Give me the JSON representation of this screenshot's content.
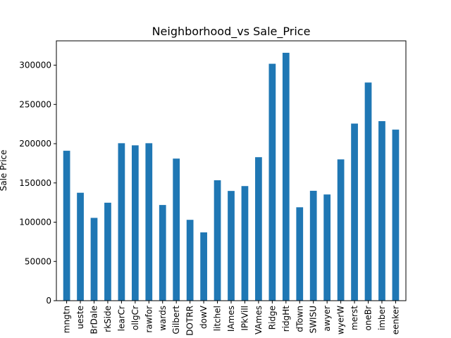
{
  "chart_data": {
    "type": "bar",
    "title": "Neighborhood_vs Sale_Price",
    "xlabel": "",
    "ylabel": "Sale Price",
    "ylim": [
      0,
      331000
    ],
    "yticks": [
      0,
      50000,
      100000,
      150000,
      200000,
      250000,
      300000
    ],
    "bar_color": "#1f77b4",
    "grid": false,
    "categories": [
      "Blmngtn",
      "Blueste",
      "BrDale",
      "BrkSide",
      "ClearCr",
      "CollgCr",
      "Crawfor",
      "Edwards",
      "Gilbert",
      "IDOTRR",
      "MeadowV",
      "Mitchel",
      "NAmes",
      "NPkVill",
      "NWAmes",
      "NoRidge",
      "NridgHt",
      "OldTown",
      "SWISU",
      "Sawyer",
      "SawyerW",
      "Somerst",
      "StoneBr",
      "Timber",
      "Veenker"
    ],
    "tick_labels": [
      "mngtn",
      "ueste",
      "BrDale",
      "rkSide",
      "learCr",
      "ollgCr",
      "rawfor",
      "wards",
      "Gilbert",
      "DOTRR",
      "dowV",
      "litchel",
      "IAmes",
      "IPkVill",
      "VAmes",
      "Ridge",
      "ridgHt",
      "dTown",
      "SWISU",
      "awyer",
      "wyerW",
      "merst",
      "oneBr",
      "imber",
      "eenker"
    ],
    "values": [
      191000,
      137500,
      105500,
      124800,
      200600,
      197900,
      200600,
      121900,
      181000,
      103000,
      87000,
      153400,
      139800,
      146000,
      182800,
      301800,
      315800,
      119000,
      140000,
      135300,
      180000,
      225600,
      277900,
      228700,
      217900
    ]
  }
}
